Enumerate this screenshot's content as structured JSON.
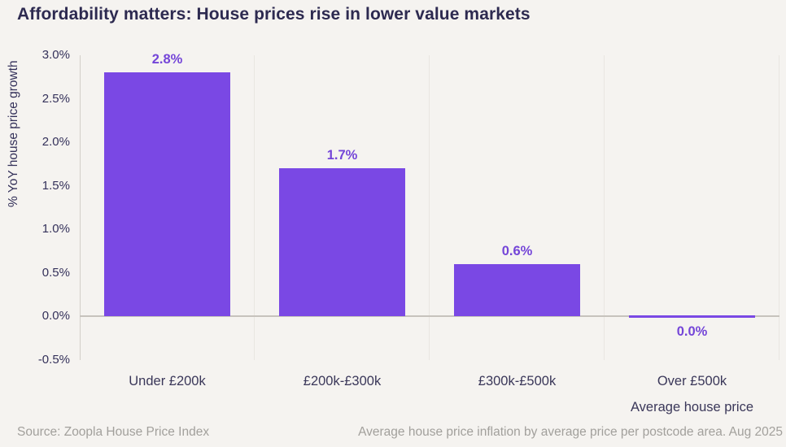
{
  "title": "Affordability matters: House prices rise in lower value markets",
  "chart_data": {
    "type": "bar",
    "title": "Affordability matters: House prices rise in lower value markets",
    "categories": [
      "Under £200k",
      "£200k-£300k",
      "£300k-£500k",
      "Over £500k"
    ],
    "values": [
      2.8,
      1.7,
      0.6,
      0.0
    ],
    "value_labels": [
      "2.8%",
      "1.7%",
      "0.6%",
      "0.0%"
    ],
    "ylabel": "% YoY house price growth",
    "xlabel": "Average house price",
    "ylim": [
      -0.5,
      3.0
    ],
    "ytick_step": 0.5,
    "yticks": [
      "3.0%",
      "2.5%",
      "2.0%",
      "1.5%",
      "1.0%",
      "0.5%",
      "0.0%",
      "-0.5%"
    ],
    "grid": "vertical category separators, zero baseline",
    "legend": "none",
    "colors": {
      "background": "#F5F3F0",
      "bar": "#7A48E4",
      "value_label": "#7445D8",
      "title_text": "#2D2A50",
      "axis_text": "#34315A",
      "gridline": "#E9E6E1",
      "zero_line": "#C7C3BD",
      "footer_text": "#A2A09C"
    }
  },
  "footer": {
    "source": "Source: Zoopla House Price Index",
    "note": "Average house price inflation by average price per postcode area. Aug 2025"
  }
}
